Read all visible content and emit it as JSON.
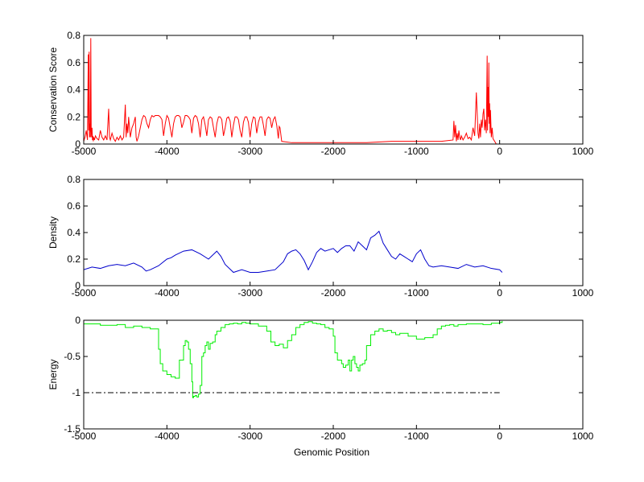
{
  "figure": {
    "xlabel": "Genomic Position"
  },
  "chart_data": [
    {
      "type": "line",
      "ylabel": "Conservation Score",
      "xlim": [
        -5000,
        1000
      ],
      "ylim": [
        0,
        0.8
      ],
      "xticks": [
        -5000,
        -4000,
        -3000,
        -2000,
        -1000,
        0,
        1000
      ],
      "yticks": [
        0,
        0.2,
        0.4,
        0.6,
        0.8
      ],
      "grid": false,
      "series": [
        {
          "color": "#ff0000",
          "x": [
            -5000,
            -4985,
            -4970,
            -4955,
            -4945,
            -4940,
            -4935,
            -4930,
            -4925,
            -4920,
            -4915,
            -4910,
            -4905,
            -4900,
            -4895,
            -4890,
            -4885,
            -4880,
            -4870,
            -4860,
            -4840,
            -4820,
            -4800,
            -4780,
            -4760,
            -4740,
            -4720,
            -4700,
            -4690,
            -4680,
            -4660,
            -4640,
            -4620,
            -4600,
            -4580,
            -4560,
            -4540,
            -4520,
            -4500,
            -4490,
            -4480,
            -4470,
            -4460,
            -4440,
            -4420,
            -4400,
            -4380,
            -4370,
            -4360,
            -4340,
            -4320,
            -4300,
            -4280,
            -4260,
            -4240,
            -4220,
            -4200,
            -4180,
            -4160,
            -4140,
            -4120,
            -4100,
            -4080,
            -4060,
            -4040,
            -4020,
            -4000,
            -3980,
            -3960,
            -3940,
            -3920,
            -3900,
            -3880,
            -3860,
            -3840,
            -3820,
            -3800,
            -3780,
            -3760,
            -3740,
            -3720,
            -3700,
            -3680,
            -3660,
            -3640,
            -3620,
            -3600,
            -3580,
            -3560,
            -3540,
            -3520,
            -3500,
            -3480,
            -3460,
            -3440,
            -3420,
            -3400,
            -3380,
            -3360,
            -3340,
            -3320,
            -3300,
            -3280,
            -3260,
            -3240,
            -3220,
            -3200,
            -3180,
            -3160,
            -3140,
            -3120,
            -3100,
            -3080,
            -3060,
            -3040,
            -3020,
            -3000,
            -2980,
            -2960,
            -2940,
            -2920,
            -2900,
            -2880,
            -2860,
            -2840,
            -2820,
            -2800,
            -2780,
            -2760,
            -2740,
            -2720,
            -2700,
            -2680,
            -2660,
            -2650,
            -2640,
            -2620,
            -2500,
            -2200,
            -1900,
            -1600,
            -1300,
            -1000,
            -700,
            -560,
            -550,
            -540,
            -530,
            -520,
            -510,
            -500,
            -490,
            -480,
            -470,
            -460,
            -440,
            -420,
            -400,
            -380,
            -360,
            -340,
            -320,
            -300,
            -280,
            -260,
            -250,
            -240,
            -230,
            -220,
            -210,
            -200,
            -190,
            -180,
            -170,
            -160,
            -150,
            -145,
            -140,
            -135,
            -130,
            -125,
            -120,
            -115,
            -110,
            -100,
            -90,
            -80,
            -70,
            -60,
            -50,
            -40,
            -30,
            -20,
            -10,
            0
          ],
          "y": [
            0.02,
            0.05,
            0.1,
            0.03,
            0.66,
            0.1,
            0.68,
            0.05,
            0.15,
            0.05,
            0.78,
            0.1,
            0.05,
            0.12,
            0.03,
            0.06,
            0.02,
            0.05,
            0.03,
            0.06,
            0.04,
            0.03,
            0.1,
            0.05,
            0.03,
            0.06,
            0.03,
            0.26,
            0.05,
            0.03,
            0.08,
            0.04,
            0.02,
            0.05,
            0.03,
            0.06,
            0.03,
            0.05,
            0.29,
            0.05,
            0.15,
            0.08,
            0.2,
            0.05,
            0.12,
            0.15,
            0.2,
            0.05,
            0.02,
            0.06,
            0.12,
            0.18,
            0.21,
            0.2,
            0.15,
            0.12,
            0.18,
            0.21,
            0.2,
            0.21,
            0.21,
            0.21,
            0.2,
            0.18,
            0.06,
            0.15,
            0.21,
            0.19,
            0.12,
            0.05,
            0.15,
            0.2,
            0.21,
            0.21,
            0.2,
            0.12,
            0.16,
            0.21,
            0.21,
            0.2,
            0.18,
            0.08,
            0.19,
            0.21,
            0.2,
            0.15,
            0.05,
            0.18,
            0.2,
            0.14,
            0.06,
            0.18,
            0.2,
            0.19,
            0.12,
            0.05,
            0.15,
            0.2,
            0.2,
            0.18,
            0.06,
            0.12,
            0.19,
            0.2,
            0.17,
            0.05,
            0.14,
            0.2,
            0.2,
            0.18,
            0.1,
            0.05,
            0.16,
            0.2,
            0.2,
            0.16,
            0.05,
            0.15,
            0.2,
            0.19,
            0.08,
            0.16,
            0.2,
            0.2,
            0.14,
            0.06,
            0.18,
            0.2,
            0.19,
            0.12,
            0.18,
            0.2,
            0.14,
            0.04,
            0.13,
            0.12,
            0.02,
            0.01,
            0.01,
            0.01,
            0.01,
            0.02,
            0.02,
            0.02,
            0.03,
            0.17,
            0.05,
            0.14,
            0.02,
            0.08,
            0.03,
            0.1,
            0.05,
            0.03,
            0.06,
            0.03,
            0.05,
            0.08,
            0.04,
            0.05,
            0.03,
            0.12,
            0.06,
            0.38,
            0.08,
            0.04,
            0.15,
            0.05,
            0.18,
            0.12,
            0.22,
            0.26,
            0.1,
            0.18,
            0.08,
            0.65,
            0.1,
            0.42,
            0.2,
            0.6,
            0.15,
            0.3,
            0.08,
            0.25,
            0.05,
            0.12,
            0.04,
            0.03,
            0.02,
            0.01,
            0.0,
            0.0,
            0.0,
            0.0,
            0.0
          ]
        }
      ]
    },
    {
      "type": "line",
      "ylabel": "Density",
      "xlim": [
        -5000,
        1000
      ],
      "ylim": [
        0,
        0.8
      ],
      "xticks": [
        -5000,
        -4000,
        -3000,
        -2000,
        -1000,
        0,
        1000
      ],
      "yticks": [
        0,
        0.2,
        0.4,
        0.6,
        0.8
      ],
      "grid": false,
      "series": [
        {
          "color": "#0000cc",
          "x": [
            -5000,
            -4900,
            -4800,
            -4700,
            -4600,
            -4500,
            -4400,
            -4300,
            -4250,
            -4200,
            -4100,
            -4000,
            -3950,
            -3900,
            -3800,
            -3700,
            -3600,
            -3500,
            -3400,
            -3350,
            -3300,
            -3200,
            -3100,
            -3000,
            -2900,
            -2800,
            -2700,
            -2600,
            -2550,
            -2500,
            -2450,
            -2400,
            -2350,
            -2300,
            -2250,
            -2200,
            -2150,
            -2100,
            -2050,
            -2000,
            -1950,
            -1900,
            -1850,
            -1800,
            -1750,
            -1700,
            -1650,
            -1600,
            -1550,
            -1500,
            -1450,
            -1400,
            -1350,
            -1300,
            -1250,
            -1200,
            -1150,
            -1100,
            -1050,
            -1000,
            -950,
            -900,
            -850,
            -800,
            -700,
            -600,
            -500,
            -400,
            -300,
            -200,
            -100,
            0,
            30
          ],
          "y": [
            0.12,
            0.14,
            0.13,
            0.15,
            0.16,
            0.15,
            0.17,
            0.14,
            0.11,
            0.12,
            0.15,
            0.2,
            0.21,
            0.23,
            0.26,
            0.27,
            0.24,
            0.2,
            0.26,
            0.22,
            0.16,
            0.1,
            0.12,
            0.1,
            0.1,
            0.11,
            0.12,
            0.18,
            0.24,
            0.26,
            0.27,
            0.24,
            0.19,
            0.12,
            0.18,
            0.25,
            0.28,
            0.26,
            0.27,
            0.28,
            0.25,
            0.28,
            0.3,
            0.3,
            0.26,
            0.33,
            0.3,
            0.27,
            0.36,
            0.38,
            0.41,
            0.32,
            0.27,
            0.22,
            0.2,
            0.24,
            0.22,
            0.2,
            0.18,
            0.24,
            0.27,
            0.2,
            0.15,
            0.14,
            0.15,
            0.14,
            0.13,
            0.16,
            0.14,
            0.15,
            0.13,
            0.12,
            0.1
          ]
        }
      ]
    },
    {
      "type": "line",
      "ylabel": "Energy",
      "xlim": [
        -5000,
        1000
      ],
      "ylim": [
        -1.5,
        0
      ],
      "xticks": [
        -5000,
        -4000,
        -3000,
        -2000,
        -1000,
        0,
        1000
      ],
      "yticks": [
        -1.5,
        -1,
        -0.5,
        0
      ],
      "grid": false,
      "series": [
        {
          "color": "#00ee00",
          "step": true,
          "x": [
            -5000,
            -4800,
            -4600,
            -4500,
            -4400,
            -4300,
            -4200,
            -4100,
            -4080,
            -4050,
            -4000,
            -3950,
            -3900,
            -3850,
            -3800,
            -3780,
            -3760,
            -3740,
            -3720,
            -3700,
            -3690,
            -3680,
            -3660,
            -3640,
            -3620,
            -3600,
            -3580,
            -3560,
            -3540,
            -3520,
            -3500,
            -3480,
            -3450,
            -3420,
            -3400,
            -3350,
            -3300,
            -3250,
            -3200,
            -3150,
            -3100,
            -3050,
            -3000,
            -2900,
            -2800,
            -2750,
            -2700,
            -2650,
            -2600,
            -2550,
            -2500,
            -2450,
            -2400,
            -2350,
            -2300,
            -2250,
            -2200,
            -2150,
            -2100,
            -2050,
            -2000,
            -1980,
            -1950,
            -1900,
            -1880,
            -1850,
            -1820,
            -1800,
            -1780,
            -1760,
            -1740,
            -1720,
            -1700,
            -1680,
            -1650,
            -1620,
            -1600,
            -1550,
            -1500,
            -1450,
            -1400,
            -1350,
            -1300,
            -1250,
            -1200,
            -1100,
            -1000,
            -900,
            -800,
            -750,
            -700,
            -650,
            -600,
            -550,
            -500,
            -400,
            -300,
            -200,
            -100,
            0,
            30
          ],
          "y": [
            -0.05,
            -0.07,
            -0.06,
            -0.1,
            -0.08,
            -0.1,
            -0.12,
            -0.4,
            -0.6,
            -0.7,
            -0.75,
            -0.78,
            -0.8,
            -0.55,
            -0.35,
            -0.28,
            -0.3,
            -0.4,
            -0.6,
            -0.85,
            -1.07,
            -1.05,
            -1.04,
            -1.06,
            -1.02,
            -0.9,
            -0.5,
            -0.45,
            -0.35,
            -0.3,
            -0.4,
            -0.32,
            -0.3,
            -0.2,
            -0.15,
            -0.1,
            -0.06,
            -0.05,
            -0.04,
            -0.05,
            -0.03,
            -0.04,
            -0.05,
            -0.08,
            -0.15,
            -0.3,
            -0.35,
            -0.33,
            -0.38,
            -0.28,
            -0.2,
            -0.1,
            -0.06,
            -0.03,
            -0.02,
            -0.04,
            -0.05,
            -0.06,
            -0.1,
            -0.12,
            -0.22,
            -0.45,
            -0.55,
            -0.6,
            -0.65,
            -0.62,
            -0.55,
            -0.7,
            -0.55,
            -0.5,
            -0.6,
            -0.65,
            -0.7,
            -0.62,
            -0.6,
            -0.55,
            -0.35,
            -0.2,
            -0.15,
            -0.12,
            -0.15,
            -0.14,
            -0.17,
            -0.2,
            -0.18,
            -0.22,
            -0.26,
            -0.24,
            -0.2,
            -0.12,
            -0.08,
            -0.07,
            -0.06,
            -0.08,
            -0.06,
            -0.05,
            -0.05,
            -0.06,
            -0.04,
            -0.03,
            -0.01
          ]
        },
        {
          "color": "#000000",
          "dash": "dashdot",
          "x": [
            -5000,
            0
          ],
          "y": [
            -1,
            -1
          ]
        }
      ]
    }
  ]
}
